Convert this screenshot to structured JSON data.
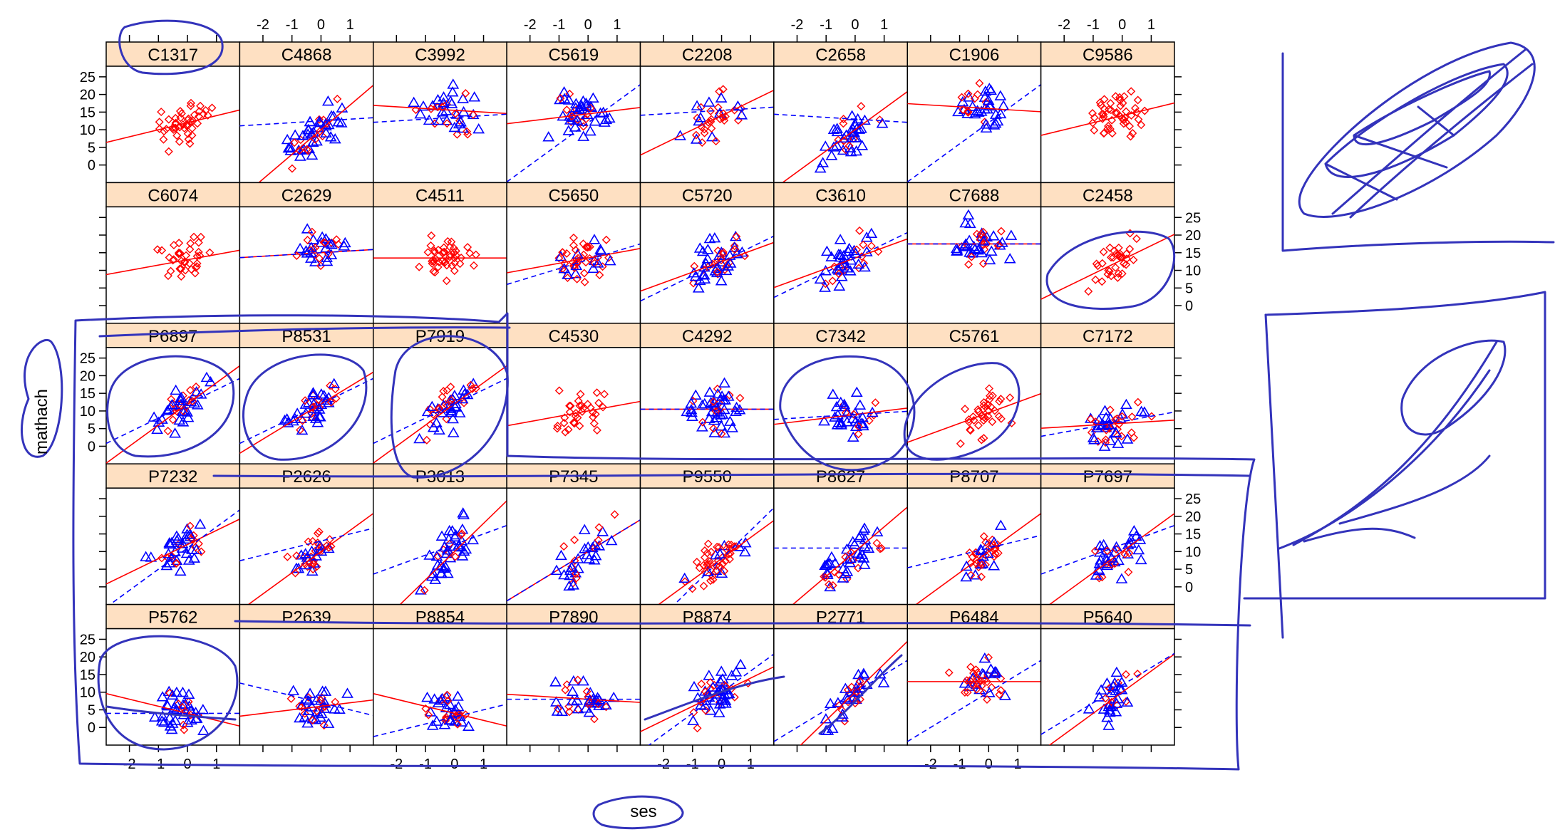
{
  "chart_data": {
    "type": "scatter",
    "layout": {
      "columns": 8,
      "rows": 5
    },
    "xlabel": "ses",
    "ylabel": "mathach",
    "xlim": [
      -2.8,
      1.8
    ],
    "ylim": [
      -5,
      28
    ],
    "x_ticks": [
      "-2",
      "-1",
      "0",
      "1"
    ],
    "y_ticks": [
      "0",
      "5",
      "10",
      "15",
      "20",
      "25"
    ],
    "grid": false,
    "strip_color": "#fee0c2",
    "catholic_color": "#ff0000",
    "public_color": "#0000ff",
    "panels": [
      {
        "label": "C1317",
        "marker": "circle",
        "fit": [
          12.0,
          2.0
        ]
      },
      {
        "label": "C4868",
        "marker": "triangle",
        "fit": [
          10.0,
          7.0
        ],
        "dash": [
          12.5,
          0.5
        ]
      },
      {
        "label": "C3992",
        "marker": "triangle",
        "fit": [
          15.5,
          -0.5
        ],
        "dash": [
          13.5,
          0.5
        ]
      },
      {
        "label": "C5619",
        "marker": "triangle",
        "fit": [
          14.5,
          1.0
        ],
        "dash": [
          12.0,
          6.0
        ]
      },
      {
        "label": "C2208",
        "marker": "circle",
        "fit": [
          14.0,
          4.0
        ],
        "dash": [
          15.5,
          0.5
        ]
      },
      {
        "label": "C2658",
        "marker": "triangle",
        "fit": [
          10.0,
          6.0
        ],
        "dash": [
          13.0,
          -0.5
        ]
      },
      {
        "label": "C1906",
        "marker": "triangle",
        "fit": [
          16.0,
          -0.5
        ],
        "dash": [
          12.0,
          6.0
        ]
      },
      {
        "label": "C9586",
        "marker": "circle",
        "fit": [
          14.0,
          2.0
        ]
      },
      {
        "label": "C6074",
        "marker": "circle",
        "fit": [
          13.0,
          1.5
        ]
      },
      {
        "label": "C2629",
        "marker": "triangle",
        "fit": [
          15.0,
          0.5
        ],
        "dash": [
          15.0,
          0.5
        ]
      },
      {
        "label": "C4511",
        "marker": "circle",
        "fit": [
          13.5,
          0.0
        ]
      },
      {
        "label": "C5650",
        "marker": "circle",
        "fit": [
          13.5,
          1.5
        ],
        "dash": [
          13.0,
          2.5
        ]
      },
      {
        "label": "C5720",
        "marker": "triangle",
        "fit": [
          12.5,
          3.0
        ],
        "dash": [
          12.5,
          4.0
        ]
      },
      {
        "label": "C3610",
        "marker": "triangle",
        "fit": [
          13.5,
          3.0
        ],
        "dash": [
          13.5,
          4.0
        ]
      },
      {
        "label": "C7688",
        "marker": "triangle",
        "fit": [
          17.5,
          0.0
        ],
        "dash": [
          17.5,
          0.0
        ]
      },
      {
        "label": "C2458",
        "marker": "circle",
        "fit": [
          13.0,
          4.0
        ]
      },
      {
        "label": "P6897",
        "marker": "triangle",
        "fit": [
          12.0,
          6.0
        ],
        "dash": [
          12.0,
          4.0
        ]
      },
      {
        "label": "P8531",
        "marker": "triangle",
        "fit": [
          12.0,
          5.0
        ],
        "dash": [
          12.0,
          4.0
        ]
      },
      {
        "label": "P7919",
        "marker": "triangle",
        "fit": [
          12.0,
          6.0
        ],
        "dash": [
          12.0,
          4.0
        ]
      },
      {
        "label": "C4530",
        "marker": "circle",
        "fit": [
          10.0,
          1.5
        ]
      },
      {
        "label": "C4292",
        "marker": "triangle",
        "fit": [
          10.5,
          0.0
        ],
        "dash": [
          10.5,
          0.0
        ]
      },
      {
        "label": "C7342",
        "marker": "triangle",
        "fit": [
          9.0,
          1.0
        ],
        "dash": [
          9.0,
          0.5
        ]
      },
      {
        "label": "C5761",
        "marker": "circle",
        "fit": [
          9.5,
          3.0
        ]
      },
      {
        "label": "C7172",
        "marker": "triangle",
        "fit": [
          6.5,
          0.5
        ],
        "dash": [
          7.0,
          1.5
        ]
      },
      {
        "label": "P7232",
        "marker": "triangle",
        "fit": [
          12.0,
          4.0
        ],
        "dash": [
          11.0,
          6.0
        ]
      },
      {
        "label": "P2626",
        "marker": "circle",
        "fit": [
          10.0,
          6.0
        ],
        "dash": [
          13.0,
          2.0
        ]
      },
      {
        "label": "P3013",
        "marker": "triangle",
        "fit": [
          10.0,
          8.0
        ],
        "dash": [
          12.0,
          3.0
        ]
      },
      {
        "label": "P7345",
        "marker": "triangle",
        "fit": [
          10.0,
          5.0
        ],
        "dash": [
          10.0,
          5.0
        ]
      },
      {
        "label": "P9550",
        "marker": "circle",
        "fit": [
          8.0,
          6.0
        ],
        "dash": [
          8.0,
          8.0
        ]
      },
      {
        "label": "P8627",
        "marker": "triangle",
        "fit": [
          10.0,
          7.0
        ],
        "dash": [
          11.0,
          0.0
        ]
      },
      {
        "label": "P8707",
        "marker": "circle",
        "fit": [
          10.0,
          6.0
        ],
        "dash": [
          11.0,
          2.0
        ]
      },
      {
        "label": "P7697",
        "marker": "triangle",
        "fit": [
          10.0,
          6.0
        ],
        "dash": [
          12.0,
          3.0
        ]
      },
      {
        "label": "P5762",
        "marker": "triangle",
        "fit": [
          4.0,
          -2.0
        ],
        "dash": [
          4.0,
          0.0
        ]
      },
      {
        "label": "P2639",
        "marker": "triangle",
        "fit": [
          6.0,
          1.0
        ],
        "dash": [
          7.0,
          -2.0
        ]
      },
      {
        "label": "P8854",
        "marker": "triangle",
        "fit": [
          4.0,
          -2.0
        ],
        "dash": [
          3.0,
          2.0
        ]
      },
      {
        "label": "P7890",
        "marker": "triangle",
        "fit": [
          8.0,
          -0.5
        ],
        "dash": [
          8.0,
          0.0
        ]
      },
      {
        "label": "P8874",
        "marker": "triangle",
        "fit": [
          10.0,
          4.0
        ],
        "dash": [
          10.0,
          6.0
        ]
      },
      {
        "label": "P2771",
        "marker": "triangle",
        "fit": [
          10.0,
          8.0
        ],
        "dash": [
          10.0,
          5.0
        ]
      },
      {
        "label": "P6484",
        "marker": "circle",
        "fit": [
          13.0,
          0.0
        ],
        "dash": [
          10.0,
          5.0
        ]
      },
      {
        "label": "P5640",
        "marker": "triangle",
        "fit": [
          10.0,
          6.0
        ],
        "dash": [
          12.0,
          5.0
        ]
      }
    ]
  }
}
